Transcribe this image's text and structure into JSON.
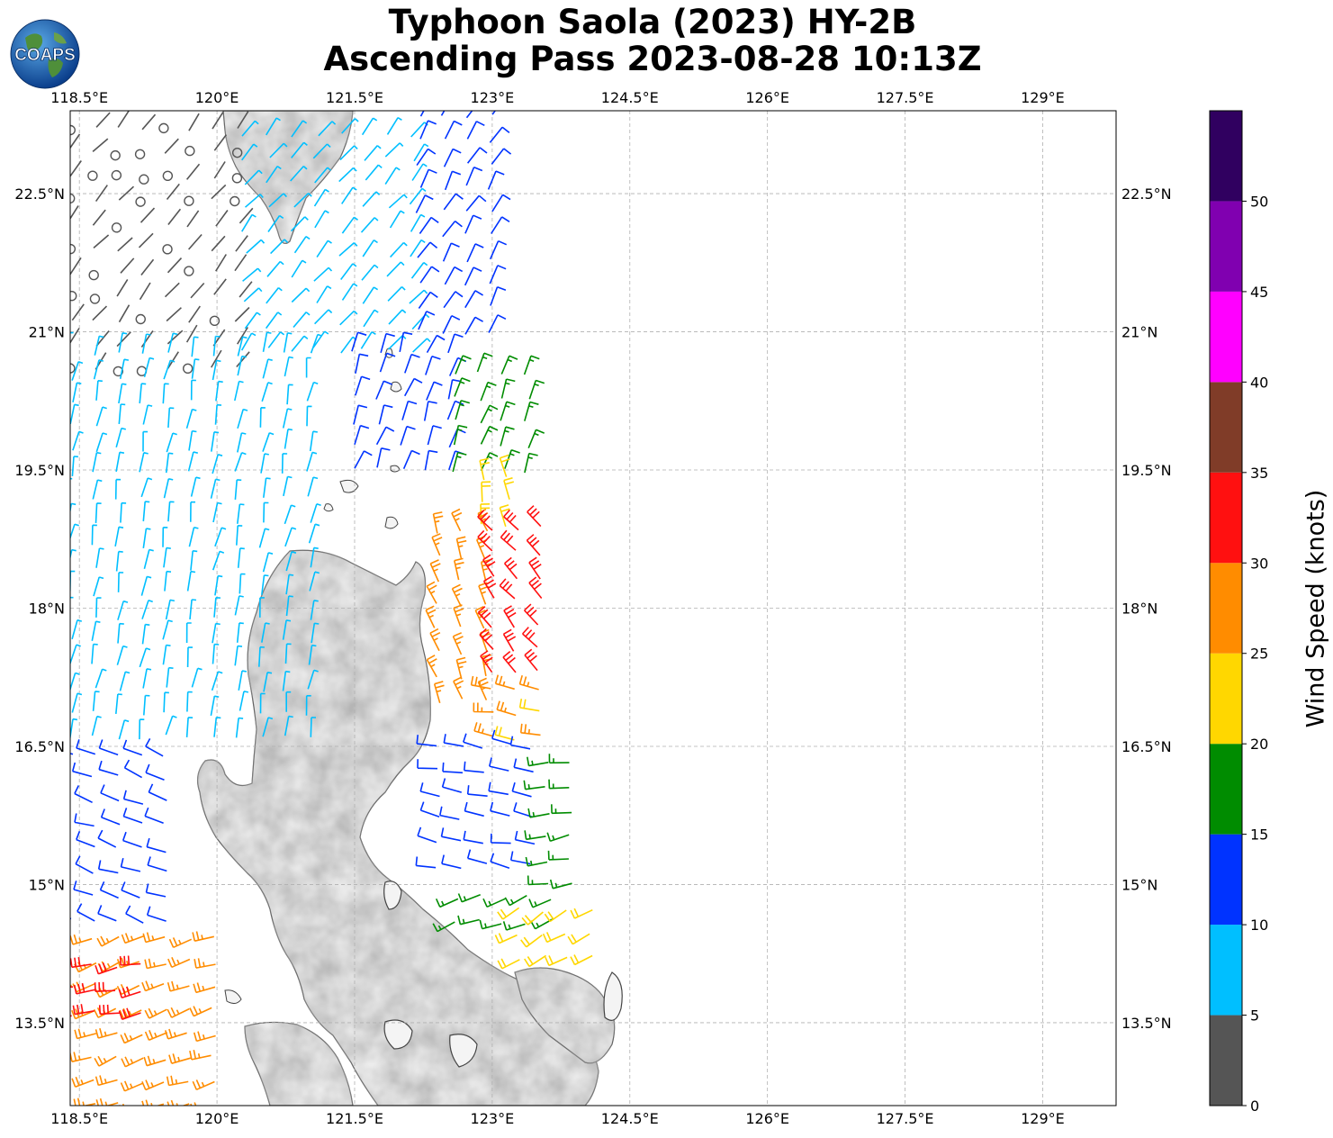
{
  "title": {
    "line1": "Typhoon Saola (2023) HY-2B",
    "line2": "Ascending Pass 2023-08-28 10:13Z"
  },
  "logo": {
    "text": "COAPS",
    "icon": "globe-logo-icon"
  },
  "map": {
    "lon_range": [
      118.4,
      129.8
    ],
    "lat_range": [
      12.6,
      23.4
    ],
    "lon_ticks": [
      {
        "value": 118.5,
        "label": "118.5°E"
      },
      {
        "value": 120,
        "label": "120°E"
      },
      {
        "value": 121.5,
        "label": "121.5°E"
      },
      {
        "value": 123,
        "label": "123°E"
      },
      {
        "value": 124.5,
        "label": "124.5°E"
      },
      {
        "value": 126,
        "label": "126°E"
      },
      {
        "value": 127.5,
        "label": "127.5°E"
      },
      {
        "value": 129,
        "label": "129°E"
      }
    ],
    "lat_ticks": [
      {
        "value": 22.5,
        "label": "22.5°N"
      },
      {
        "value": 21,
        "label": "21°N"
      },
      {
        "value": 19.5,
        "label": "19.5°N"
      },
      {
        "value": 18,
        "label": "18°N"
      },
      {
        "value": 16.5,
        "label": "16.5°N"
      },
      {
        "value": 15,
        "label": "15°N"
      },
      {
        "value": 13.5,
        "label": "13.5°N"
      }
    ],
    "gridlines": "dashed",
    "land_fill": "grey terrain shading",
    "coastline_color": "#444444"
  },
  "colorbar": {
    "label": "Wind Speed (knots)",
    "placement": "right",
    "bins": [
      {
        "min": 0,
        "max": 5,
        "color": "#555555"
      },
      {
        "min": 5,
        "max": 10,
        "color": "#00bfff"
      },
      {
        "min": 10,
        "max": 15,
        "color": "#0033ff"
      },
      {
        "min": 15,
        "max": 20,
        "color": "#008c00"
      },
      {
        "min": 20,
        "max": 25,
        "color": "#ffd700"
      },
      {
        "min": 25,
        "max": 30,
        "color": "#ff8c00"
      },
      {
        "min": 30,
        "max": 35,
        "color": "#ff1010"
      },
      {
        "min": 35,
        "max": 40,
        "color": "#803c28"
      },
      {
        "min": 40,
        "max": 45,
        "color": "#ff00ff"
      },
      {
        "min": 45,
        "max": 50,
        "color": "#8000b0"
      },
      {
        "min": 50,
        "max": 55,
        "color": "#300060"
      }
    ],
    "tick_labels": [
      "0",
      "5",
      "10",
      "15",
      "20",
      "25",
      "30",
      "35",
      "40",
      "45",
      "50"
    ]
  },
  "wind_regions": [
    {
      "name": "calm-northwest",
      "lon": [
        118.4,
        120.3
      ],
      "lat": [
        20.6,
        23.4
      ],
      "speed": 3,
      "dir": 40
    },
    {
      "name": "northern-swath",
      "lon": [
        120.3,
        122.2
      ],
      "lat": [
        20.8,
        23.4
      ],
      "speed": 7,
      "dir": 40
    },
    {
      "name": "northeast-edge",
      "lon": [
        122.2,
        123.1
      ],
      "lat": [
        21.0,
        23.4
      ],
      "speed": 12,
      "dir": 30
    },
    {
      "name": "west-channel",
      "lon": [
        118.4,
        121.2
      ],
      "lat": [
        16.6,
        21.0
      ],
      "speed": 8,
      "dir": 10
    },
    {
      "name": "luzon-strait-east",
      "lon": [
        121.5,
        122.6
      ],
      "lat": [
        19.5,
        21.0
      ],
      "speed": 12,
      "dir": 20
    },
    {
      "name": "east-green",
      "lon": [
        122.6,
        123.4
      ],
      "lat": [
        19.5,
        20.6
      ],
      "speed": 17,
      "dir": 20
    },
    {
      "name": "east-gold",
      "lon": [
        122.9,
        123.4
      ],
      "lat": [
        18.9,
        19.5
      ],
      "speed": 22,
      "dir": 350
    },
    {
      "name": "east-orange",
      "lon": [
        122.4,
        123.0
      ],
      "lat": [
        17.0,
        19.0
      ],
      "speed": 27,
      "dir": 340
    },
    {
      "name": "eyewall-red",
      "lon": [
        123.0,
        123.6
      ],
      "lat": [
        17.3,
        18.9
      ],
      "speed": 32,
      "dir": 320
    },
    {
      "name": "south-orange",
      "lon": [
        123.0,
        123.7
      ],
      "lat": [
        16.6,
        17.3
      ],
      "speed": 26,
      "dir": 280
    },
    {
      "name": "southwest-blue",
      "lon": [
        118.4,
        119.6
      ],
      "lat": [
        14.6,
        16.6
      ],
      "speed": 12,
      "dir": 290
    },
    {
      "name": "eastern-blue",
      "lon": [
        122.4,
        123.6
      ],
      "lat": [
        15.2,
        16.6
      ],
      "speed": 13,
      "dir": 280
    },
    {
      "name": "eastern-green",
      "lon": [
        123.6,
        124.1
      ],
      "lat": [
        15.0,
        16.4
      ],
      "speed": 17,
      "dir": 260
    },
    {
      "name": "southeast-green",
      "lon": [
        122.6,
        123.8
      ],
      "lat": [
        14.6,
        15.1
      ],
      "speed": 17,
      "dir": 250
    },
    {
      "name": "southeast-gold",
      "lon": [
        123.3,
        124.2
      ],
      "lat": [
        14.2,
        14.9
      ],
      "speed": 22,
      "dir": 240
    },
    {
      "name": "southwest-orange",
      "lon": [
        118.4,
        120.0
      ],
      "lat": [
        12.6,
        14.5
      ],
      "speed": 27,
      "dir": 250
    },
    {
      "name": "southwest-red",
      "lon": [
        118.4,
        119.2
      ],
      "lat": [
        13.6,
        14.2
      ],
      "speed": 32,
      "dir": 260
    }
  ]
}
